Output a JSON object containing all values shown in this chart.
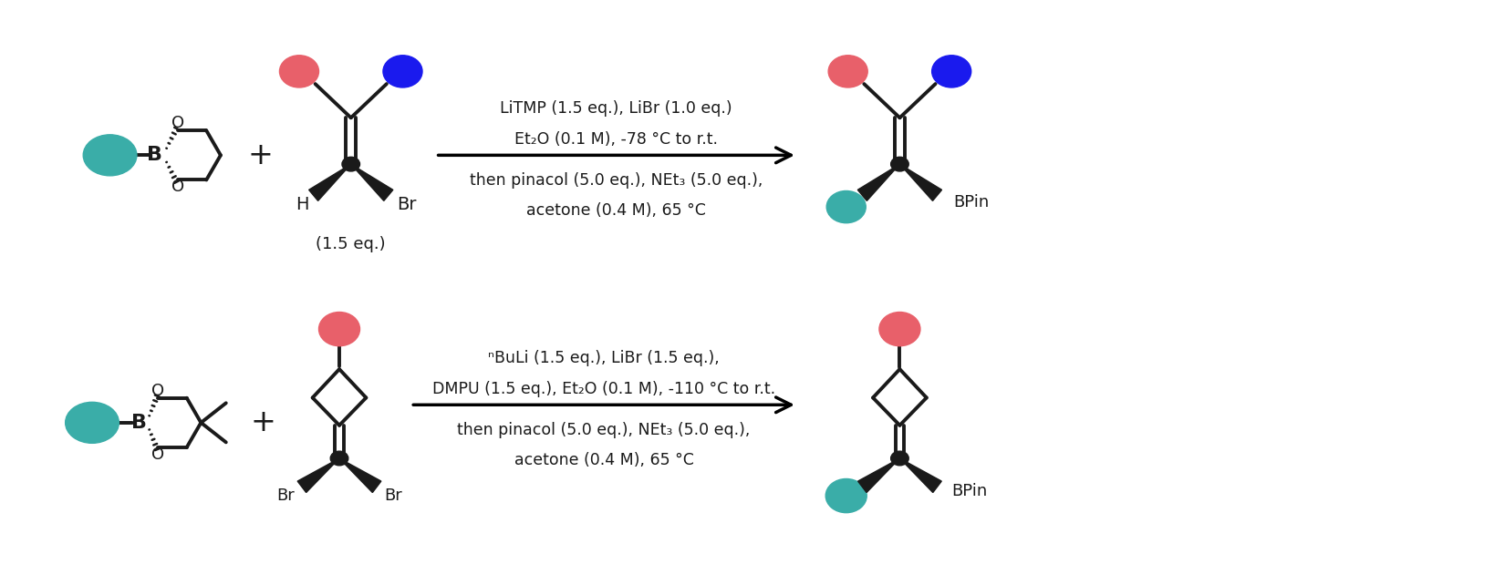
{
  "background_color": "#ffffff",
  "teal_color": "#3aada8",
  "pink_color": "#e8606a",
  "blue_color": "#1a1aee",
  "black_color": "#1a1a1a",
  "reaction1": {
    "line1": "LiTMP (1.5 eq.), LiBr (1.0 eq.)",
    "line2": "Et₂O (0.1 M), -78 °C to r.t.",
    "line3": "then pinacol (5.0 eq.), NEt₃ (5.0 eq.),",
    "line4": "acetone (0.4 M), 65 °C",
    "equiv": "(1.5 eq.)"
  },
  "reaction2": {
    "line1": "ⁿBuLi (1.5 eq.), LiBr (1.5 eq.),",
    "line2": "DMPU (1.5 eq.), Et₂O (0.1 M), -110 °C to r.t.",
    "line3": "then pinacol (5.0 eq.), NEt₃ (5.0 eq.),",
    "line4": "acetone (0.4 M), 65 °C"
  }
}
